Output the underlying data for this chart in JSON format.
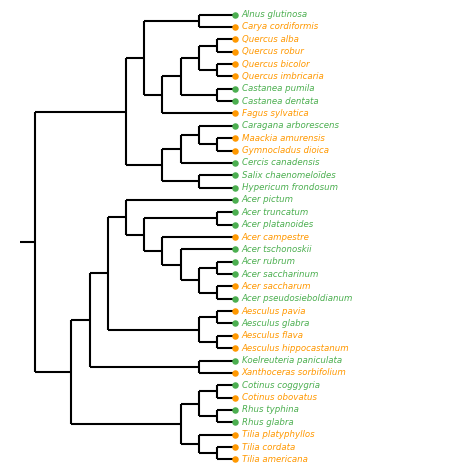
{
  "species": [
    "Alnus glutinosa",
    "Carya cordiformis",
    "Quercus alba",
    "Quercus robur",
    "Quercus bicolor",
    "Quercus imbricaria",
    "Castanea pumila",
    "Castanea dentata",
    "Fagus sylvatica",
    "Caragana arborescens",
    "Maackia amurensis",
    "Gymnocladus dioica",
    "Cercis canadensis",
    "Salix chaenomeloïdes",
    "Hypericum frondosum",
    "Acer pictum",
    "Acer truncatum",
    "Acer platanoides",
    "Acer campestre",
    "Acer tschonoskii",
    "Acer rubrum",
    "Acer saccharinum",
    "Acer saccharum",
    "Acer pseudosieboldianum",
    "Aesculus pavia",
    "Aesculus glabra",
    "Aesculus flava",
    "Aesculus hippocastanum",
    "Koelreuteria paniculata",
    "Xanthoceras sorbifolium",
    "Cotinus coggygria",
    "Cotinus obovatus",
    "Rhus typhina",
    "Rhus glabra",
    "Tilia platyphyllos",
    "Tilia cordata",
    "Tilia americana"
  ],
  "dot_colors": [
    "#4caf50",
    "#ff9800",
    "#ff9800",
    "#ff9800",
    "#ff9800",
    "#ff9800",
    "#4caf50",
    "#4caf50",
    "#ff9800",
    "#4caf50",
    "#ff9800",
    "#ff9800",
    "#4caf50",
    "#4caf50",
    "#4caf50",
    "#4caf50",
    "#4caf50",
    "#4caf50",
    "#ff9800",
    "#4caf50",
    "#4caf50",
    "#4caf50",
    "#ff9800",
    "#4caf50",
    "#ff9800",
    "#4caf50",
    "#ff9800",
    "#ff9800",
    "#4caf50",
    "#ff9800",
    "#4caf50",
    "#ff9800",
    "#4caf50",
    "#4caf50",
    "#ff9800",
    "#ff9800",
    "#ff9800"
  ],
  "text_colors": [
    "#4caf50",
    "#ff9800",
    "#ff9800",
    "#ff9800",
    "#ff9800",
    "#ff9800",
    "#4caf50",
    "#4caf50",
    "#ff9800",
    "#4caf50",
    "#ff9800",
    "#ff9800",
    "#4caf50",
    "#4caf50",
    "#4caf50",
    "#4caf50",
    "#4caf50",
    "#4caf50",
    "#ff9800",
    "#4caf50",
    "#4caf50",
    "#4caf50",
    "#ff9800",
    "#4caf50",
    "#ff9800",
    "#4caf50",
    "#ff9800",
    "#ff9800",
    "#4caf50",
    "#ff9800",
    "#4caf50",
    "#ff9800",
    "#4caf50",
    "#4caf50",
    "#ff9800",
    "#ff9800",
    "#ff9800"
  ],
  "line_color": "#000000",
  "bg_color": "#ffffff",
  "font_size": 6.2,
  "lw": 1.5
}
